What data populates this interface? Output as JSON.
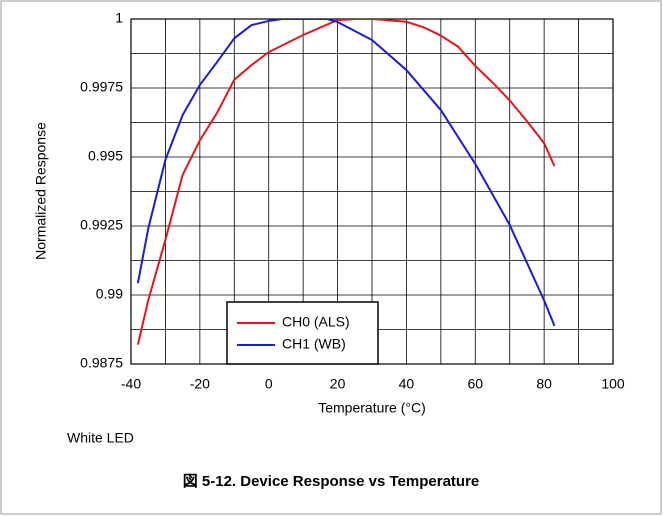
{
  "chart_data": {
    "type": "line",
    "xlabel": "Temperature (°C)",
    "ylabel": "Normalized Response",
    "annotation": "White LED",
    "caption": "図 5-12. Device Response vs Temperature",
    "xlim": [
      -40,
      100
    ],
    "xticks": [
      -40,
      -20,
      0,
      20,
      40,
      60,
      80,
      100
    ],
    "ylim": [
      0.9875,
      1
    ],
    "yticks": [
      0.9875,
      0.99,
      0.9925,
      0.995,
      0.9975,
      1
    ],
    "grid": true,
    "legend": "lower center",
    "series": [
      {
        "name": "CH0 (ALS)",
        "color": "#e8141b",
        "x": [
          -38,
          -35,
          -30,
          -25,
          -20,
          -15,
          -10,
          -5,
          0,
          10,
          20,
          25,
          30,
          35,
          40,
          45,
          50,
          55,
          60,
          65,
          70,
          75,
          80,
          83
        ],
        "values": [
          0.9882,
          0.9898,
          0.992,
          0.99435,
          0.9956,
          0.9966,
          0.9978,
          0.99833,
          0.9988,
          0.99942,
          0.99996,
          1,
          1,
          0.99995,
          0.9999,
          0.9997,
          0.9994,
          0.999,
          0.9983,
          0.9977,
          0.99705,
          0.9963,
          0.9955,
          0.99467
        ]
      },
      {
        "name": "CH1 (WB)",
        "color": "#1a1ae0",
        "x": [
          -38,
          -35,
          -30,
          -25,
          -20,
          -15,
          -10,
          -5,
          0,
          4,
          10,
          15,
          17,
          20,
          30,
          40,
          50,
          60,
          70,
          80,
          83
        ],
        "values": [
          0.99043,
          0.9924,
          0.9949,
          0.99652,
          0.99761,
          0.99844,
          0.9993,
          0.99978,
          0.99993,
          1,
          1,
          1,
          1,
          0.99989,
          0.99924,
          0.99815,
          0.9967,
          0.99475,
          0.99254,
          0.9898,
          0.98888
        ]
      }
    ]
  }
}
